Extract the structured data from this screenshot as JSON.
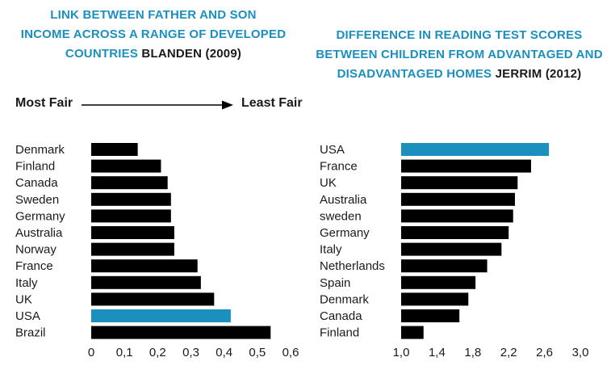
{
  "arrow": {
    "start_label": "Most Fair",
    "end_label": "Least Fair"
  },
  "colors": {
    "bar": "#000000",
    "highlight": "#1b8fbd"
  },
  "chart_data": [
    {
      "type": "bar",
      "orientation": "horizontal",
      "title": "LINK BETWEEN FATHER AND SON INCOME ACROSS A RANGE OF DEVELOPED COUNTRIES",
      "source": "BLANDEN (2009)",
      "title_lines": [
        "LINK BETWEEN FATHER AND SON",
        "INCOME ACROSS A RANGE OF DEVELOPED",
        "COUNTRIES"
      ],
      "categories": [
        "Denmark",
        "Finland",
        "Canada",
        "Sweden",
        "Germany",
        "Australia",
        "Norway",
        "France",
        "Italy",
        "UK",
        "USA",
        "Brazil"
      ],
      "values": [
        0.14,
        0.21,
        0.23,
        0.24,
        0.24,
        0.25,
        0.25,
        0.32,
        0.33,
        0.37,
        0.42,
        0.54
      ],
      "highlight": "USA",
      "xlim": [
        0,
        0.6
      ],
      "ticks": [
        "0",
        "0,1",
        "0,2",
        "0,3",
        "0,4",
        "0,5",
        "0,6"
      ],
      "tick_values": [
        0,
        0.1,
        0.2,
        0.3,
        0.4,
        0.5,
        0.6
      ],
      "xlabel": "",
      "ylabel": "",
      "grid": false,
      "legend": "none"
    },
    {
      "type": "bar",
      "orientation": "horizontal",
      "title": "DIFFERENCE IN READING TEST SCORES BETWEEN CHILDREN FROM ADVANTAGED AND DISADVANTAGED HOMES",
      "source": "JERRIM (2012)",
      "title_lines": [
        "DIFFERENCE IN READING TEST SCORES",
        "BETWEEN CHILDREN FROM ADVANTAGED AND",
        "DISADVANTAGED HOMES"
      ],
      "categories": [
        "USA",
        "France",
        "UK",
        "Australia",
        "sweden",
        "Germany",
        "Italy",
        "Netherlands",
        "Spain",
        "Denmark",
        "Canada",
        "Finland"
      ],
      "values": [
        2.65,
        2.45,
        2.3,
        2.27,
        2.25,
        2.2,
        2.12,
        1.96,
        1.83,
        1.75,
        1.65,
        1.25
      ],
      "highlight": "USA",
      "xlim": [
        1.0,
        3.0
      ],
      "ticks": [
        "1,0",
        "1,4",
        "1,8",
        "2,2",
        "2,6",
        "3,0"
      ],
      "tick_values": [
        1.0,
        1.4,
        1.8,
        2.2,
        2.6,
        3.0
      ],
      "xlabel": "",
      "ylabel": "",
      "grid": false,
      "legend": "none"
    }
  ]
}
